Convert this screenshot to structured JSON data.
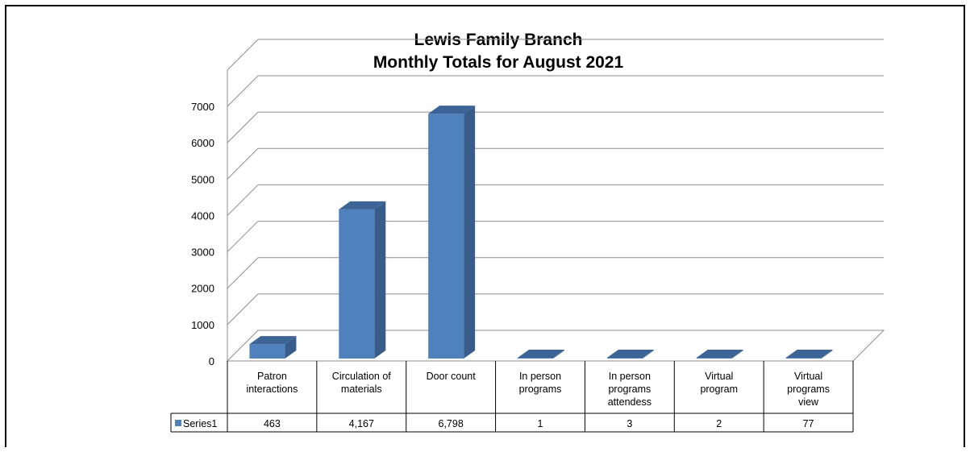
{
  "chart_data": {
    "type": "bar",
    "title": [
      "Lewis Family Branch",
      "Monthly Totals for August 2021"
    ],
    "categories": [
      [
        "Patron",
        "interactions"
      ],
      [
        "Circulation of",
        "materials"
      ],
      [
        "Door count"
      ],
      [
        "In person",
        "programs"
      ],
      [
        "In person",
        "programs",
        "attendess"
      ],
      [
        "Virtual",
        "program"
      ],
      [
        "Virtual",
        "programs",
        "view"
      ]
    ],
    "series": [
      {
        "name": "Series1",
        "values": [
          463,
          4167,
          6798,
          1,
          3,
          2,
          77
        ],
        "labels": [
          "463",
          "4,167",
          "6,798",
          "1",
          "3",
          "2",
          "77"
        ]
      }
    ],
    "ylim": [
      0,
      7000
    ],
    "yticks": [
      "0",
      "1000",
      "2000",
      "3000",
      "4000",
      "5000",
      "6000",
      "7000"
    ],
    "grid": true,
    "data_table": true,
    "colors": {
      "bar_front": "#4f81bd",
      "bar_side": "#385d8a",
      "bar_top": "#3c6496",
      "grid": "#8c8c8c",
      "border": "#000000"
    }
  }
}
